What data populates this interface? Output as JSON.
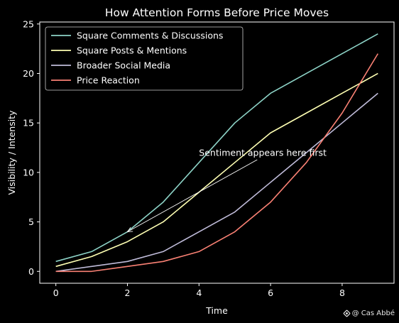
{
  "chart_data": {
    "type": "line",
    "title": "How Attention Forms Before Price Moves",
    "xlabel": "Time",
    "ylabel": "Visibility / Intensity",
    "xlim": [
      -0.45,
      9.45
    ],
    "ylim": [
      -1.2,
      25.2
    ],
    "x": [
      0,
      1,
      2,
      3,
      4,
      5,
      6,
      7,
      8,
      9
    ],
    "xticks": [
      0,
      2,
      4,
      6,
      8
    ],
    "yticks": [
      0,
      5,
      10,
      15,
      20,
      25
    ],
    "grid": false,
    "legend_position": "upper-left",
    "series": [
      {
        "name": "Square Comments & Discussions",
        "color": "#8dd3c7",
        "values": [
          1,
          2,
          4,
          7,
          11,
          15,
          18,
          20,
          22,
          24
        ]
      },
      {
        "name": "Square Posts & Mentions",
        "color": "#feffb3",
        "values": [
          0.5,
          1.5,
          3,
          5,
          8,
          11,
          14,
          16,
          18,
          20
        ]
      },
      {
        "name": "Broader Social Media",
        "color": "#bfbbd9",
        "values": [
          0,
          0.5,
          1,
          2,
          4,
          6,
          9,
          12,
          15,
          18
        ]
      },
      {
        "name": "Price Reaction",
        "color": "#fa8174",
        "values": [
          0,
          0,
          0.5,
          1,
          2,
          4,
          7,
          11,
          16,
          22
        ]
      }
    ],
    "annotations": [
      {
        "text": "Sentiment appears here first",
        "xy": [
          2,
          4
        ],
        "xytext": [
          4,
          12
        ]
      }
    ]
  },
  "watermark": {
    "text": "@ Cas Abbé",
    "icon": "binance-logo-icon"
  }
}
